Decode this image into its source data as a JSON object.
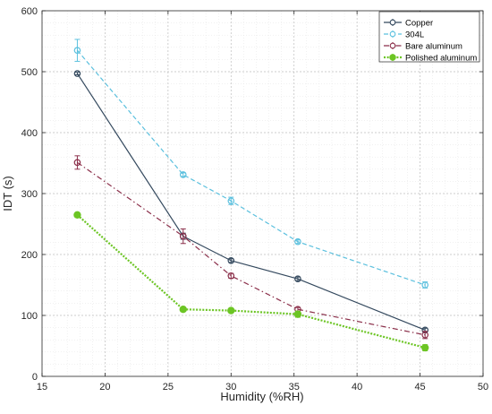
{
  "chart_data": {
    "type": "line",
    "xlabel": "Humidity (%RH)",
    "ylabel": "IDT (s)",
    "xlim": [
      15,
      50
    ],
    "ylim": [
      0,
      600
    ],
    "xticks": [
      "15",
      "20",
      "25",
      "30",
      "35",
      "40",
      "45",
      "50"
    ],
    "yticks": [
      "0",
      "100",
      "200",
      "300",
      "400",
      "500",
      "600"
    ],
    "grid": "on (major and minor, dotted)",
    "legend_position": "top-right",
    "series": [
      {
        "name": "Copper",
        "color": "#34495e",
        "line_style": "solid",
        "marker": "open-circle",
        "x": [
          17.8,
          26.2,
          30.0,
          35.3,
          45.4
        ],
        "y": [
          497,
          230,
          190,
          160,
          76
        ],
        "err": [
          2,
          5,
          3,
          3,
          3
        ]
      },
      {
        "name": "304L",
        "color": "#5bc0de",
        "line_style": "dashed",
        "marker": "open-circle",
        "x": [
          17.8,
          26.2,
          30.0,
          35.3,
          45.4
        ],
        "y": [
          535,
          331,
          288,
          221,
          150
        ],
        "err": [
          18,
          3,
          6,
          3,
          5
        ]
      },
      {
        "name": "Bare aluminum",
        "color": "#8b2f4a",
        "line_style": "dash-dot",
        "marker": "open-circle",
        "x": [
          17.8,
          26.2,
          30.0,
          35.3,
          45.4
        ],
        "y": [
          351,
          230,
          165,
          110,
          68
        ],
        "err": [
          11,
          12,
          4,
          3,
          6
        ]
      },
      {
        "name": "Polished aluminum",
        "color": "#6cc524",
        "line_style": "dotted",
        "marker": "filled-circle",
        "x": [
          17.8,
          26.2,
          30.0,
          35.3,
          45.4
        ],
        "y": [
          265,
          110,
          108,
          102,
          47
        ],
        "err": [
          2,
          2,
          2,
          5,
          5
        ]
      }
    ]
  }
}
